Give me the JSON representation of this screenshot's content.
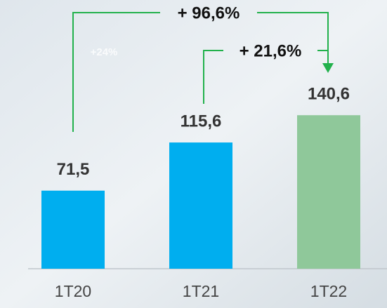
{
  "chart_data": {
    "type": "bar",
    "categories": [
      "1T20",
      "1T21",
      "1T22"
    ],
    "values": [
      71.5,
      115.6,
      140.6
    ],
    "value_labels": [
      "71,5",
      "115,6",
      "140,6"
    ],
    "colors": [
      "#00aeef",
      "#00aeef",
      "#8fc89a"
    ],
    "annotations": [
      "+ 96,6%",
      "+ 21,6%",
      "+24%"
    ],
    "ylim": [
      0,
      160
    ]
  }
}
